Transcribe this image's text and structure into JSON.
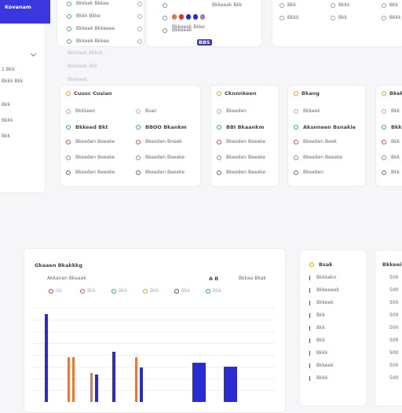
{
  "brand": "Kovanam",
  "sidebar": {
    "items": [
      "1 Bkk",
      "Bkkk Bkk",
      "Bkk",
      "Bkkk",
      "Bkk"
    ],
    "faded": [
      "Bkkkeek Bkkek",
      "Bkkkeek Bkk",
      "Bkkkeek"
    ]
  },
  "top": {
    "panel1": [
      "Bkkkek Bkkee",
      "Bkkk Bkke",
      "Bkkeek Bkkeeee",
      "Bkkeek Bkkee"
    ],
    "panel2": [
      "Bkkeeek Bkk",
      "Bkkeeek Bkke",
      "Bkkeeek"
    ],
    "tag": "BBS",
    "panel3": [
      "Bkk",
      "Bkkk",
      "Bkk",
      "Bkkk",
      "Bkk",
      "Bkkk"
    ]
  },
  "cards": [
    {
      "title": "Cuusc Cusian",
      "rows": [
        [
          "Bkkkeen",
          "Bsan"
        ],
        [
          "Bkkeed Bkt",
          "BBOO Bkankm"
        ],
        [
          "Bkeeden Beeeke",
          "Bkeeden Bneek"
        ],
        [
          "Bkeeden Beeeke",
          "Bkeeden Beeeke"
        ],
        [
          "Bkeeden Beeeke",
          "Bkeeden Beeeke"
        ]
      ]
    },
    {
      "title": "Cknnnkeen",
      "rows": [
        [
          "Bkeeden"
        ],
        [
          "BBI Bkaankm"
        ],
        [
          "Bkeeden Beeeke"
        ],
        [
          "Bkeeden Beeeke"
        ],
        [
          "Bkeeden Beeeke"
        ]
      ]
    },
    {
      "title": "Bkang",
      "rows": [
        [
          "Bkkeek"
        ],
        [
          "Aksnneen Bsnakie"
        ],
        [
          "Bkeeden Beek"
        ],
        [
          "Bkeeden Beeeke"
        ],
        [
          "Bkeeden"
        ]
      ]
    },
    {
      "title": "Bkeke",
      "rows": [
        [
          "Bkk"
        ],
        [
          "Bkk"
        ],
        [
          "Bkk"
        ],
        [
          "Bkk"
        ],
        [
          "Bkk"
        ]
      ]
    }
  ],
  "chart_data": {
    "type": "bar",
    "title": "Gkaaen Bkakkkg",
    "subtitle": "Akkanan Bkaaak",
    "side_label": "A B",
    "side_text": "Bkkaa Bkak",
    "legend": [
      "Gk",
      "Bkk",
      "Bkk",
      "Bkk",
      "Bkk",
      "Bkk"
    ],
    "series": [
      {
        "color": "#2b2bd6",
        "values": [
          112,
          35,
          64,
          44,
          50,
          45
        ]
      },
      {
        "color": "#e8773a",
        "values": [
          57,
          57,
          37,
          57
        ]
      }
    ]
  },
  "list1": {
    "title": "Bsak",
    "rows": [
      "Bkkkekn",
      "Bkkeeeek",
      "Bkkeek",
      "Bkk",
      "Bkk",
      "Bkk",
      "Bkkk",
      "Bkkeek",
      "Bkkk"
    ]
  },
  "list2": {
    "title": "Bkkeei",
    "rows": [
      "500",
      "500",
      "500",
      "500",
      "500",
      "500",
      "500",
      "500",
      "500"
    ]
  }
}
